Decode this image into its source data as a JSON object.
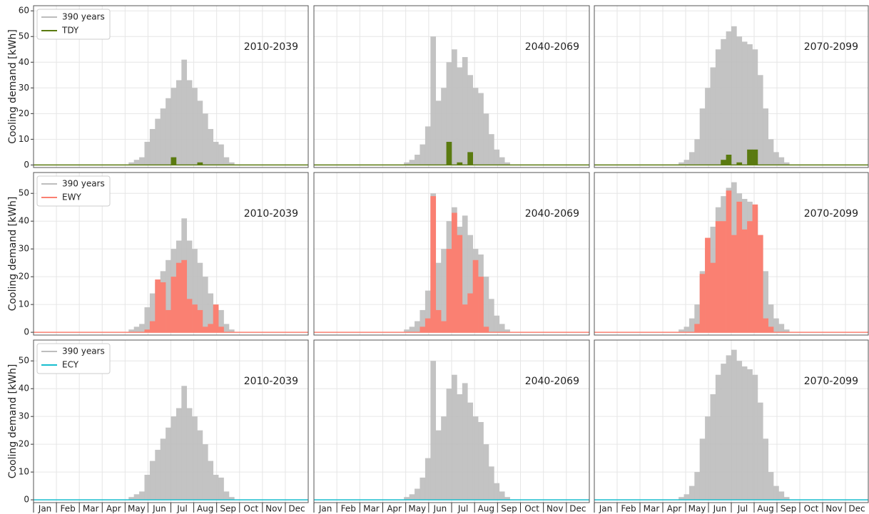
{
  "chart_data": [
    {
      "type": "bar",
      "title": "2010-2039",
      "ylabel": "Cooling demand [kWh]",
      "legend": "upper left",
      "ylim": [
        -1,
        62
      ],
      "yticks": [
        0,
        10,
        20,
        30,
        40,
        50,
        60
      ],
      "series": [
        {
          "name": "390 years",
          "color": "#bdbdbd",
          "values": [
            0,
            0,
            0,
            0,
            0,
            0,
            0,
            0,
            0,
            0,
            0,
            0,
            0,
            0,
            0,
            0,
            0,
            0,
            1,
            2,
            3,
            9,
            14,
            18,
            22,
            26,
            30,
            33,
            41,
            33,
            30,
            25,
            20,
            14,
            9,
            8,
            3,
            1,
            0,
            0,
            0,
            0,
            0,
            0,
            0,
            0,
            0,
            0,
            0,
            0,
            0,
            0
          ]
        },
        {
          "name": "TDY",
          "color": "#5a7a10",
          "values": [
            0,
            0,
            0,
            0,
            0,
            0,
            0,
            0,
            0,
            0,
            0,
            0,
            0,
            0,
            0,
            0,
            0,
            0,
            0,
            0,
            0,
            0,
            0,
            0,
            0,
            0,
            3,
            0,
            0,
            0,
            0,
            1,
            0,
            0,
            0,
            0,
            0,
            0,
            0,
            0,
            0,
            0,
            0,
            0,
            0,
            0,
            0,
            0,
            0,
            0,
            0,
            0
          ]
        }
      ]
    },
    {
      "type": "bar",
      "title": "2040-2069",
      "ylim": [
        -1,
        62
      ],
      "yticks": [
        0,
        10,
        20,
        30,
        40,
        50,
        60
      ],
      "series": [
        {
          "color": "#bdbdbd",
          "values": [
            0,
            0,
            0,
            0,
            0,
            0,
            0,
            0,
            0,
            0,
            0,
            0,
            0,
            0,
            0,
            0,
            0,
            1,
            2,
            4,
            8,
            15,
            50,
            25,
            30,
            40,
            45,
            38,
            42,
            35,
            30,
            28,
            20,
            12,
            6,
            3,
            1,
            0,
            0,
            0,
            0,
            0,
            0,
            0,
            0,
            0,
            0,
            0,
            0,
            0,
            0,
            0
          ]
        },
        {
          "color": "#5a7a10",
          "values": [
            0,
            0,
            0,
            0,
            0,
            0,
            0,
            0,
            0,
            0,
            0,
            0,
            0,
            0,
            0,
            0,
            0,
            0,
            0,
            0,
            0,
            0,
            0,
            0,
            0,
            9,
            0,
            1,
            0,
            5,
            0,
            0,
            0,
            0,
            0,
            0,
            0,
            0,
            0,
            0,
            0,
            0,
            0,
            0,
            0,
            0,
            0,
            0,
            0,
            0,
            0,
            0
          ]
        }
      ]
    },
    {
      "type": "bar",
      "title": "2070-2099",
      "ylim": [
        -1,
        62
      ],
      "yticks": [
        0,
        10,
        20,
        30,
        40,
        50,
        60
      ],
      "series": [
        {
          "color": "#bdbdbd",
          "values": [
            0,
            0,
            0,
            0,
            0,
            0,
            0,
            0,
            0,
            0,
            0,
            0,
            0,
            0,
            0,
            0,
            1,
            2,
            5,
            10,
            22,
            30,
            38,
            45,
            49,
            52,
            54,
            50,
            48,
            47,
            45,
            35,
            22,
            10,
            5,
            3,
            1,
            0,
            0,
            0,
            0,
            0,
            0,
            0,
            0,
            0,
            0,
            0,
            0,
            0,
            0,
            0
          ]
        },
        {
          "color": "#5a7a10",
          "values": [
            0,
            0,
            0,
            0,
            0,
            0,
            0,
            0,
            0,
            0,
            0,
            0,
            0,
            0,
            0,
            0,
            0,
            0,
            0,
            0,
            0,
            0,
            0,
            0,
            2,
            4,
            0,
            1,
            0,
            6,
            6,
            0,
            0,
            0,
            0,
            0,
            0,
            0,
            0,
            0,
            0,
            0,
            0,
            0,
            0,
            0,
            0,
            0,
            0,
            0,
            0,
            0
          ]
        }
      ]
    },
    {
      "type": "bar",
      "title": "2010-2039",
      "ylabel": "Cooling demand [kWh]",
      "legend": "upper left",
      "ylim": [
        -1,
        57.5
      ],
      "yticks": [
        0,
        10,
        20,
        30,
        40,
        50
      ],
      "series": [
        {
          "name": "390 years",
          "color": "#bdbdbd",
          "values": [
            0,
            0,
            0,
            0,
            0,
            0,
            0,
            0,
            0,
            0,
            0,
            0,
            0,
            0,
            0,
            0,
            0,
            0,
            1,
            2,
            3,
            9,
            14,
            18,
            22,
            26,
            30,
            33,
            41,
            33,
            30,
            25,
            20,
            14,
            9,
            8,
            3,
            1,
            0,
            0,
            0,
            0,
            0,
            0,
            0,
            0,
            0,
            0,
            0,
            0,
            0,
            0
          ]
        },
        {
          "name": "EWY",
          "color": "#fa8072",
          "values": [
            0,
            0,
            0,
            0,
            0,
            0,
            0,
            0,
            0,
            0,
            0,
            0,
            0,
            0,
            0,
            0,
            0,
            0,
            0,
            0,
            0,
            1,
            4,
            19,
            18,
            8,
            20,
            25,
            26,
            12,
            10,
            8,
            2,
            3,
            10,
            2,
            0,
            0,
            0,
            0,
            0,
            0,
            0,
            0,
            0,
            0,
            0,
            0,
            0,
            0,
            0,
            0
          ]
        }
      ]
    },
    {
      "type": "bar",
      "title": "2040-2069",
      "ylim": [
        -1,
        57.5
      ],
      "yticks": [
        0,
        10,
        20,
        30,
        40,
        50
      ],
      "series": [
        {
          "color": "#bdbdbd",
          "values": [
            0,
            0,
            0,
            0,
            0,
            0,
            0,
            0,
            0,
            0,
            0,
            0,
            0,
            0,
            0,
            0,
            0,
            1,
            2,
            4,
            8,
            15,
            50,
            25,
            30,
            40,
            45,
            38,
            42,
            35,
            30,
            28,
            20,
            12,
            6,
            3,
            1,
            0,
            0,
            0,
            0,
            0,
            0,
            0,
            0,
            0,
            0,
            0,
            0,
            0,
            0,
            0
          ]
        },
        {
          "color": "#fa8072",
          "values": [
            0,
            0,
            0,
            0,
            0,
            0,
            0,
            0,
            0,
            0,
            0,
            0,
            0,
            0,
            0,
            0,
            0,
            0,
            0,
            0,
            2,
            5,
            49,
            8,
            4,
            30,
            43,
            35,
            10,
            14,
            26,
            20,
            2,
            0,
            0,
            0,
            0,
            0,
            0,
            0,
            0,
            0,
            0,
            0,
            0,
            0,
            0,
            0,
            0,
            0,
            0,
            0
          ]
        }
      ]
    },
    {
      "type": "bar",
      "title": "2070-2099",
      "ylim": [
        -1,
        57.5
      ],
      "yticks": [
        0,
        10,
        20,
        30,
        40,
        50
      ],
      "series": [
        {
          "color": "#bdbdbd",
          "values": [
            0,
            0,
            0,
            0,
            0,
            0,
            0,
            0,
            0,
            0,
            0,
            0,
            0,
            0,
            0,
            0,
            1,
            2,
            5,
            10,
            22,
            30,
            38,
            45,
            49,
            52,
            54,
            50,
            48,
            47,
            45,
            35,
            22,
            10,
            5,
            3,
            1,
            0,
            0,
            0,
            0,
            0,
            0,
            0,
            0,
            0,
            0,
            0,
            0,
            0,
            0,
            0
          ]
        },
        {
          "color": "#fa8072",
          "values": [
            0,
            0,
            0,
            0,
            0,
            0,
            0,
            0,
            0,
            0,
            0,
            0,
            0,
            0,
            0,
            0,
            0,
            0,
            0,
            3,
            21,
            34,
            25,
            40,
            40,
            51,
            35,
            47,
            37,
            40,
            46,
            35,
            5,
            2,
            0,
            0,
            0,
            0,
            0,
            0,
            0,
            0,
            0,
            0,
            0,
            0,
            0,
            0,
            0,
            0,
            0,
            0
          ]
        }
      ]
    },
    {
      "type": "bar",
      "title": "2010-2039",
      "ylabel": "Cooling demand [kWh]",
      "legend": "upper left",
      "ylim": [
        -1,
        57.5
      ],
      "yticks": [
        0,
        10,
        20,
        30,
        40,
        50
      ],
      "months": [
        "Jan",
        "Feb",
        "Mar",
        "Apr",
        "May",
        "Jun",
        "Jul",
        "Aug",
        "Sep",
        "Oct",
        "Nov",
        "Dec"
      ],
      "series": [
        {
          "name": "390 years",
          "color": "#bdbdbd",
          "values": [
            0,
            0,
            0,
            0,
            0,
            0,
            0,
            0,
            0,
            0,
            0,
            0,
            0,
            0,
            0,
            0,
            0,
            0,
            1,
            2,
            3,
            9,
            14,
            18,
            22,
            26,
            30,
            33,
            41,
            33,
            30,
            25,
            20,
            14,
            9,
            8,
            3,
            1,
            0,
            0,
            0,
            0,
            0,
            0,
            0,
            0,
            0,
            0,
            0,
            0,
            0,
            0
          ]
        },
        {
          "name": "ECY",
          "color": "#17becf",
          "values": [
            0,
            0,
            0,
            0,
            0,
            0,
            0,
            0,
            0,
            0,
            0,
            0,
            0,
            0,
            0,
            0,
            0,
            0,
            0,
            0,
            0,
            0,
            0,
            0,
            0,
            0,
            0,
            0,
            0,
            0,
            0,
            0,
            0,
            0,
            0,
            0,
            0,
            0,
            0,
            0,
            0,
            0,
            0,
            0,
            0,
            0,
            0,
            0,
            0,
            0,
            0,
            0
          ]
        }
      ]
    },
    {
      "type": "bar",
      "title": "2040-2069",
      "ylim": [
        -1,
        57.5
      ],
      "yticks": [
        0,
        10,
        20,
        30,
        40,
        50
      ],
      "months": [
        "Jan",
        "Feb",
        "Mar",
        "Apr",
        "May",
        "Jun",
        "Jul",
        "Aug",
        "Sep",
        "Oct",
        "Nov",
        "Dec"
      ],
      "series": [
        {
          "color": "#bdbdbd",
          "values": [
            0,
            0,
            0,
            0,
            0,
            0,
            0,
            0,
            0,
            0,
            0,
            0,
            0,
            0,
            0,
            0,
            0,
            1,
            2,
            4,
            8,
            15,
            50,
            25,
            30,
            40,
            45,
            38,
            42,
            35,
            30,
            28,
            20,
            12,
            6,
            3,
            1,
            0,
            0,
            0,
            0,
            0,
            0,
            0,
            0,
            0,
            0,
            0,
            0,
            0,
            0,
            0
          ]
        },
        {
          "color": "#17becf",
          "values": [
            0,
            0,
            0,
            0,
            0,
            0,
            0,
            0,
            0,
            0,
            0,
            0,
            0,
            0,
            0,
            0,
            0,
            0,
            0,
            0,
            0,
            0,
            0,
            0,
            0,
            0,
            0,
            0,
            0,
            0,
            0,
            0,
            0,
            0,
            0,
            0,
            0,
            0,
            0,
            0,
            0,
            0,
            0,
            0,
            0,
            0,
            0,
            0,
            0,
            0,
            0,
            0
          ]
        }
      ]
    },
    {
      "type": "bar",
      "title": "2070-2099",
      "ylim": [
        -1,
        57.5
      ],
      "yticks": [
        0,
        10,
        20,
        30,
        40,
        50
      ],
      "months": [
        "Jan",
        "Feb",
        "Mar",
        "Apr",
        "May",
        "Jun",
        "Jul",
        "Aug",
        "Sep",
        "Oct",
        "Nov",
        "Dec"
      ],
      "series": [
        {
          "color": "#bdbdbd",
          "values": [
            0,
            0,
            0,
            0,
            0,
            0,
            0,
            0,
            0,
            0,
            0,
            0,
            0,
            0,
            0,
            0,
            1,
            2,
            5,
            10,
            22,
            30,
            38,
            45,
            49,
            52,
            54,
            50,
            48,
            47,
            45,
            35,
            22,
            10,
            5,
            3,
            1,
            0,
            0,
            0,
            0,
            0,
            0,
            0,
            0,
            0,
            0,
            0,
            0,
            0,
            0,
            0
          ]
        },
        {
          "color": "#17becf",
          "values": [
            0,
            0,
            0,
            0,
            0,
            0,
            0,
            0,
            0,
            0,
            0,
            0,
            0,
            0,
            0,
            0,
            0,
            0,
            0,
            0,
            0,
            0,
            0,
            0,
            0,
            0,
            0,
            0,
            0,
            0,
            0,
            0,
            0,
            0,
            0,
            0,
            0,
            0,
            0,
            0,
            0,
            0,
            0,
            0,
            0,
            0,
            0,
            0,
            0,
            0,
            0,
            0
          ]
        }
      ]
    }
  ]
}
